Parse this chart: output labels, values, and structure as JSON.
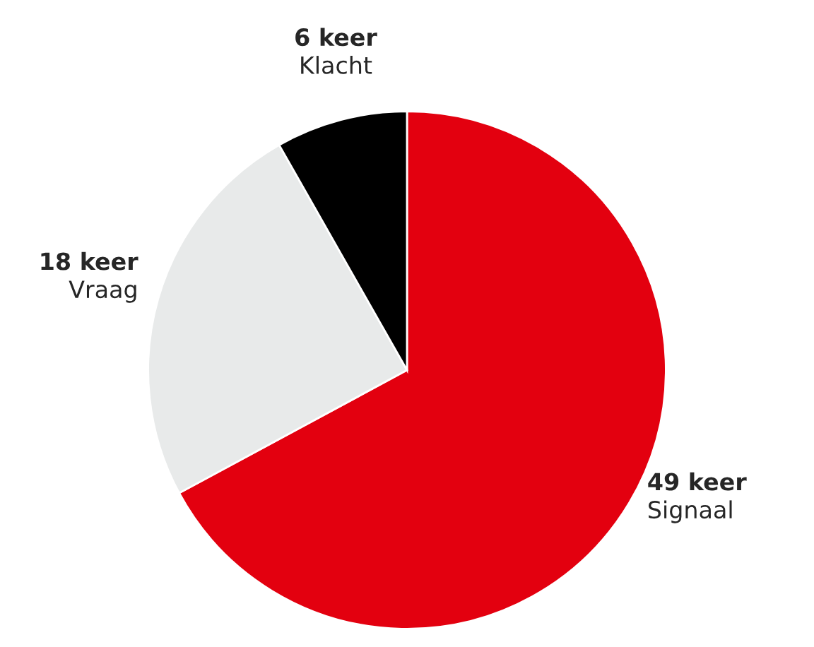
{
  "chart_data": {
    "type": "pie",
    "categories": [
      "Signaal",
      "Vraag",
      "Klacht"
    ],
    "values": [
      49,
      18,
      6
    ],
    "value_labels": [
      "49 keer",
      "18 keer",
      "6 keer"
    ],
    "colors": [
      "#e3000f",
      "#e8eaea",
      "#000000"
    ],
    "legend": false
  }
}
